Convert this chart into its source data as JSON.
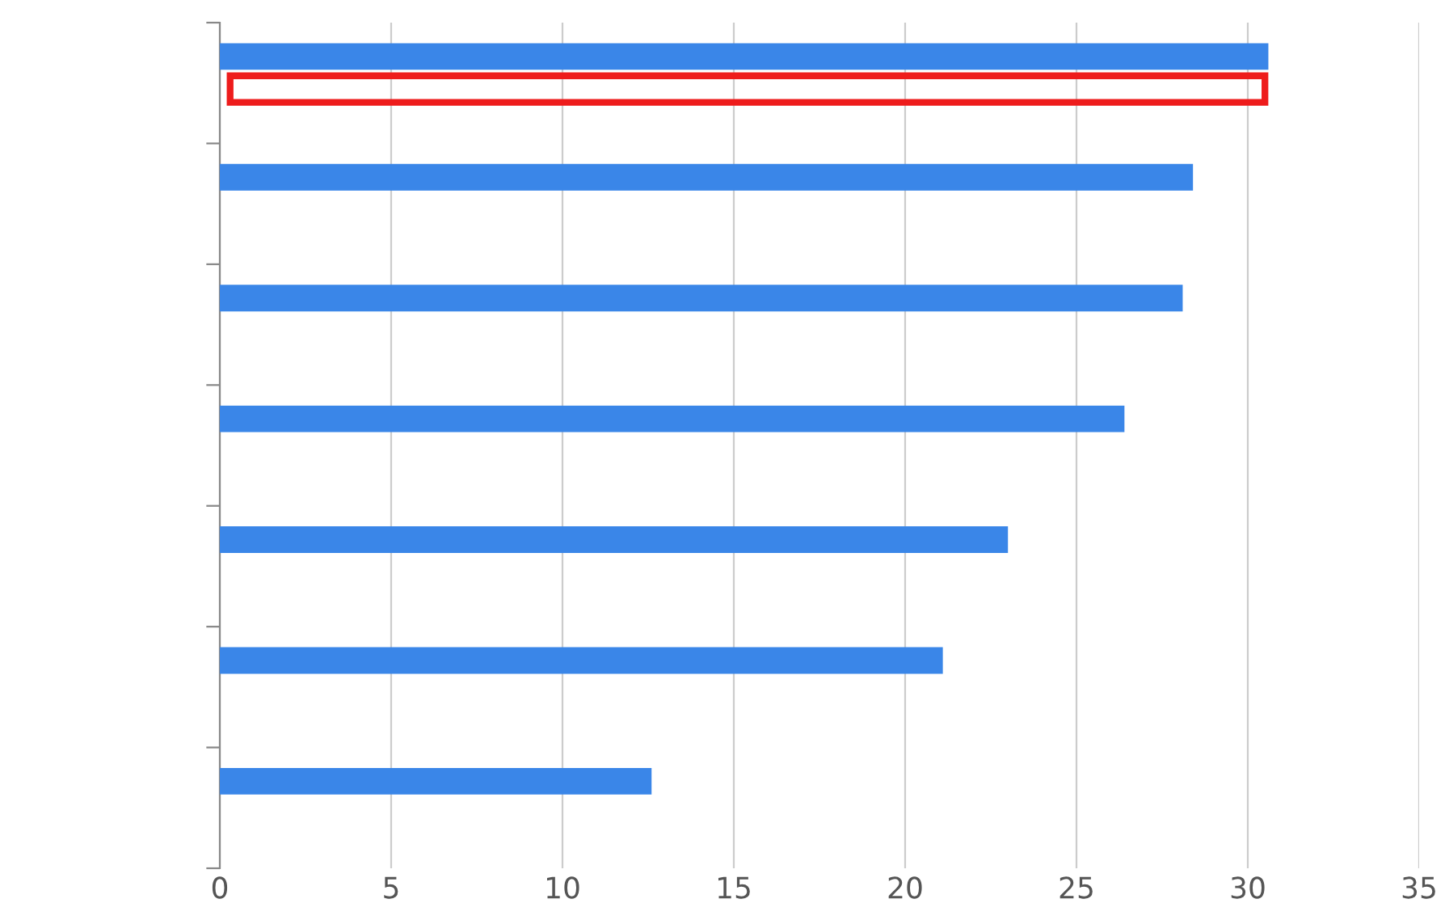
{
  "chart_data": {
    "type": "bar",
    "orientation": "horizontal",
    "categories": [
      null,
      null,
      null,
      null,
      null,
      null,
      null
    ],
    "values": [
      30.6,
      28.4,
      28.1,
      26.4,
      23.0,
      21.1,
      12.6
    ],
    "color": "#3a86e8",
    "xlim": [
      0,
      35
    ],
    "xticks": [
      0,
      5,
      10,
      15,
      20,
      25,
      30,
      35
    ],
    "grid": "x"
  }
}
